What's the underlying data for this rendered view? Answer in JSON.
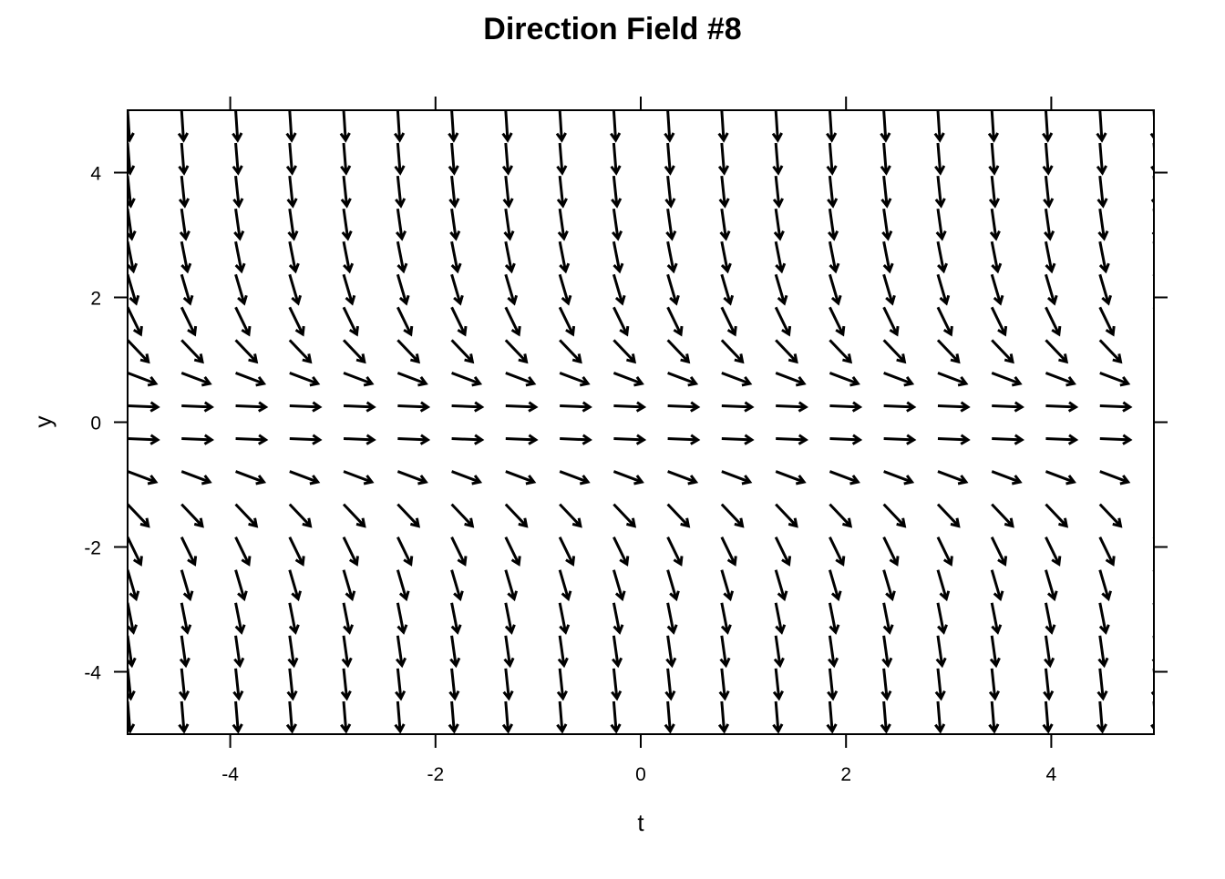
{
  "chart_data": {
    "type": "direction-field",
    "title": "Direction Field #8",
    "xlabel": "t",
    "ylabel": "y",
    "xlim": [
      -5,
      5
    ],
    "ylim": [
      -5,
      5
    ],
    "x_ticks": [
      -4,
      -2,
      0,
      2,
      4
    ],
    "y_ticks": [
      4,
      2,
      0,
      -2,
      -4
    ],
    "x_tick_labels": [
      "-4",
      "-2",
      "0",
      "2",
      "4"
    ],
    "y_tick_labels": [
      "4",
      "2",
      "0",
      "-2",
      "-4"
    ],
    "grid": false,
    "arrow_color": "#000000",
    "t_values": [
      -5,
      -4.474,
      -3.947,
      -3.421,
      -2.895,
      -2.368,
      -1.842,
      -1.316,
      -0.789,
      -0.263,
      0.263,
      0.789,
      1.316,
      1.842,
      2.368,
      2.895,
      3.421,
      3.947,
      4.474,
      5
    ],
    "y_values": [
      -5,
      -4.474,
      -3.947,
      -3.421,
      -2.895,
      -2.368,
      -1.842,
      -1.316,
      -0.789,
      -0.263,
      0.263,
      0.789,
      1.316,
      1.842,
      2.368,
      2.895,
      3.421,
      3.947,
      4.474,
      5
    ],
    "slopes_by_y": [
      -25,
      -20.02,
      -15.58,
      -11.7,
      -8.38,
      -5.61,
      -3.39,
      -1.73,
      -0.62,
      -0.07,
      -0.07,
      -0.62,
      -1.73,
      -3.39,
      -5.61,
      -8.38,
      -11.7,
      -15.58,
      -20.02,
      -25
    ]
  }
}
